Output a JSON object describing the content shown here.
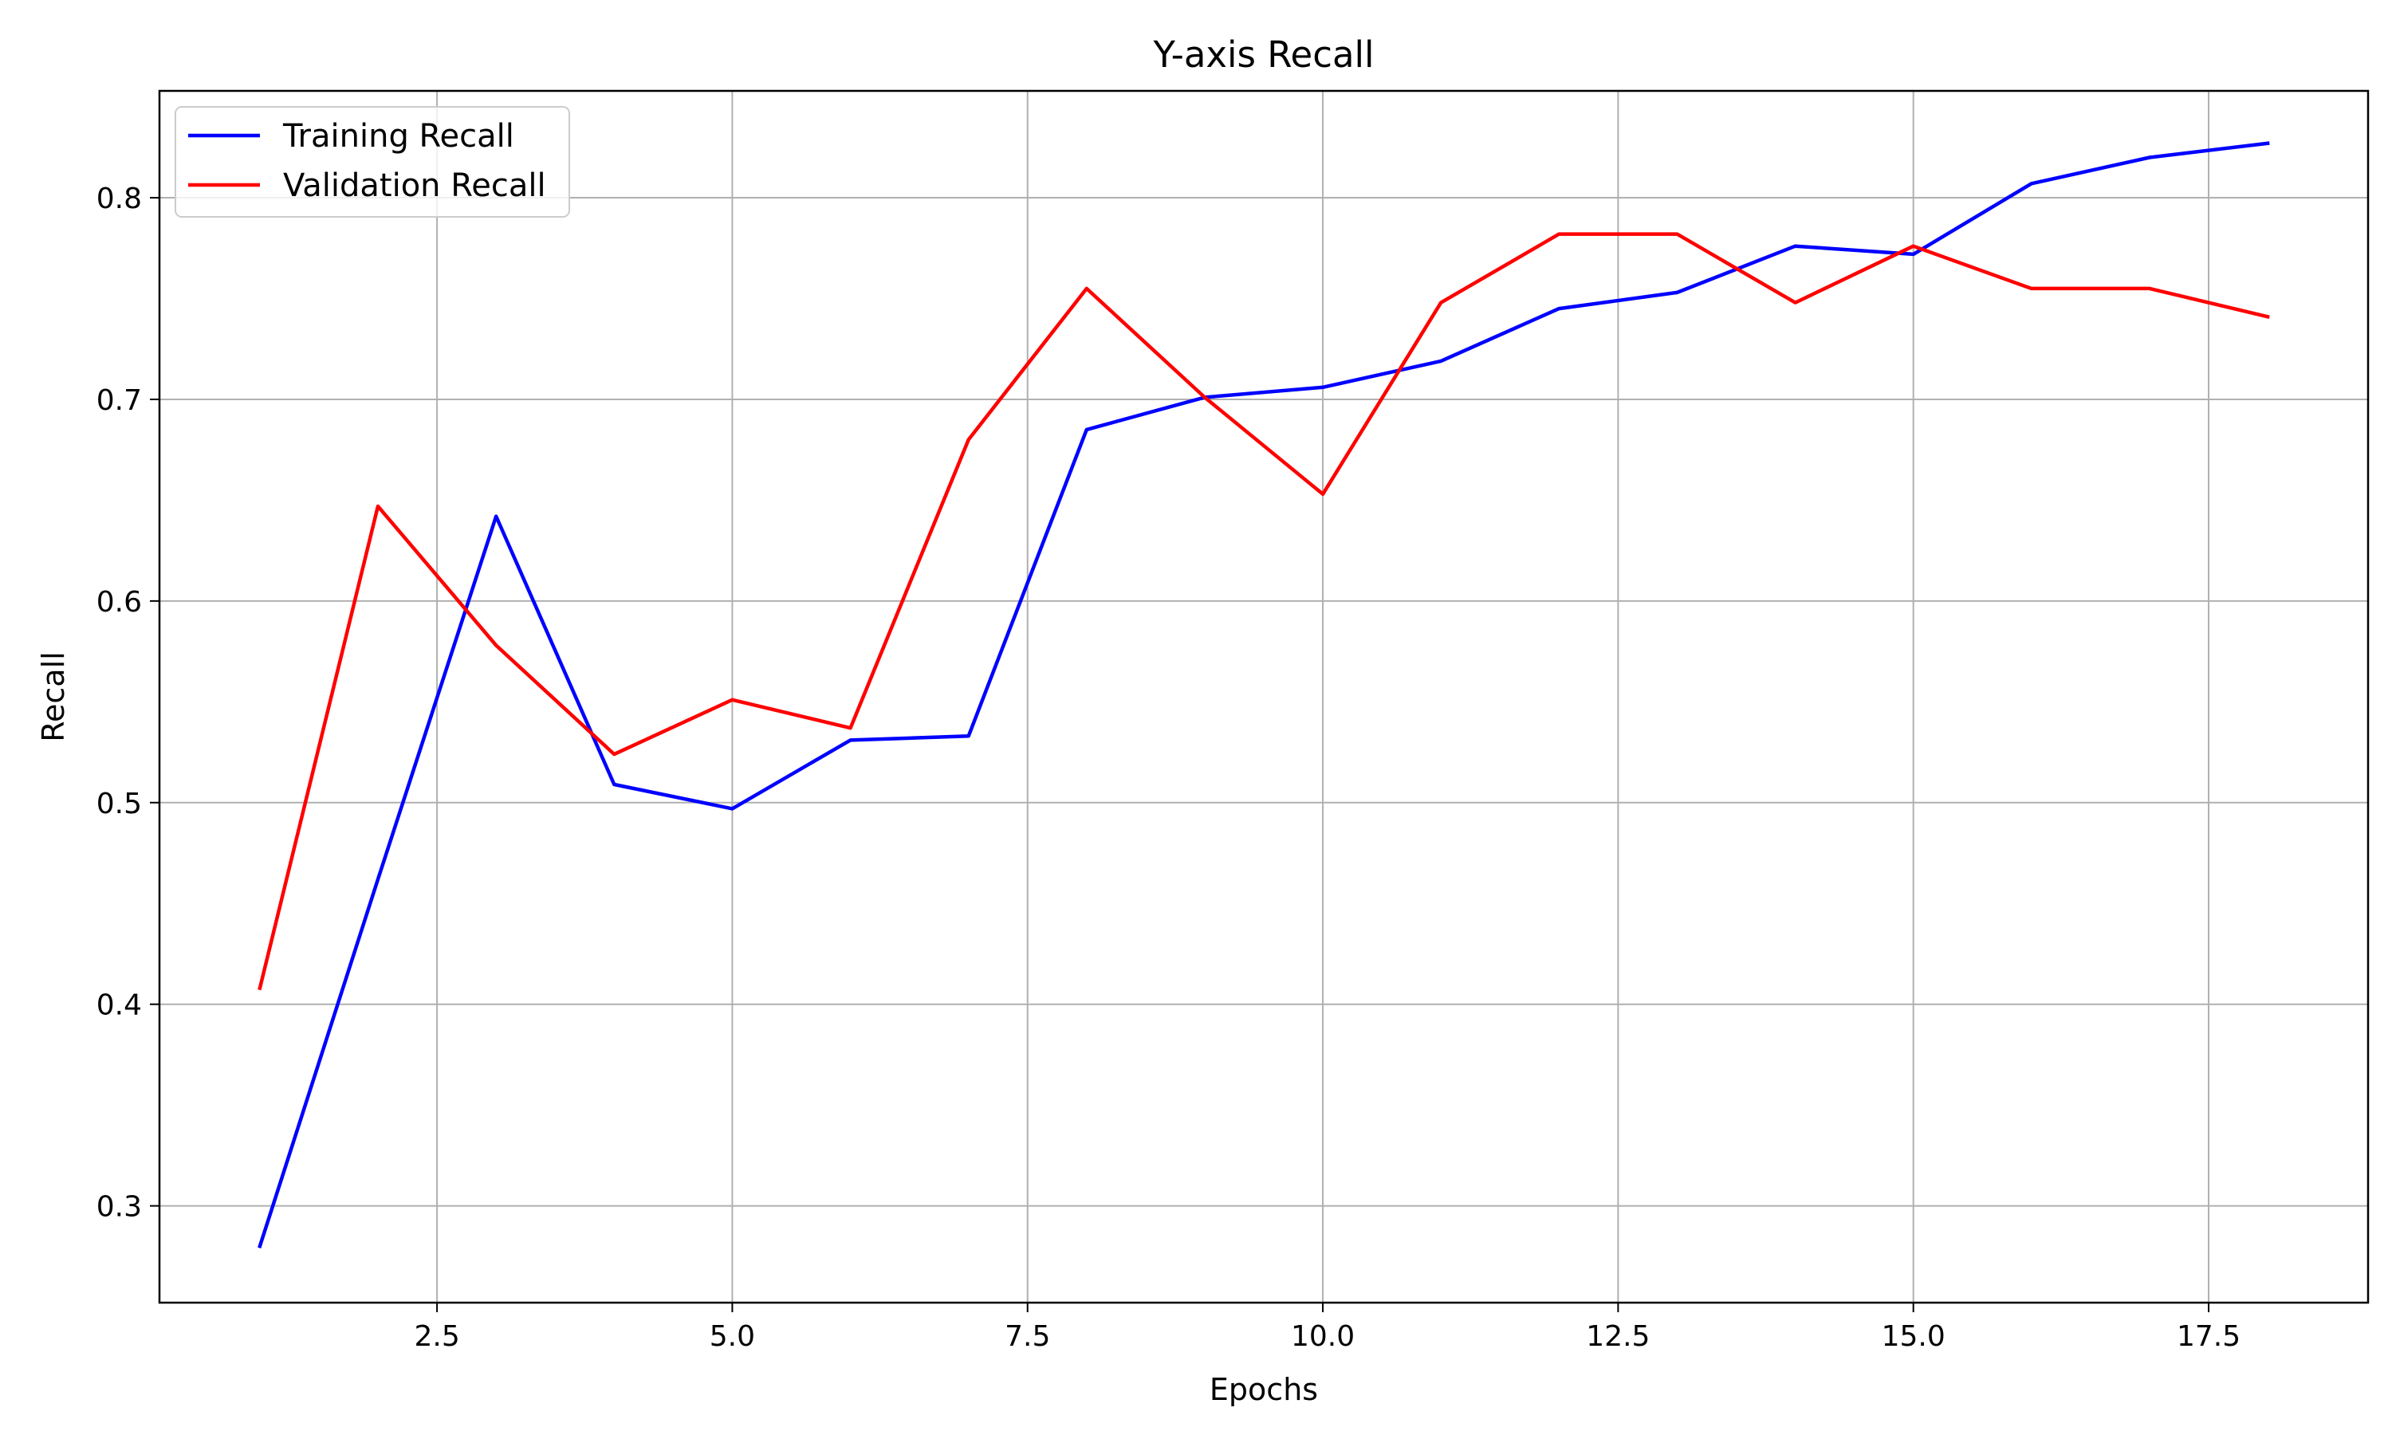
{
  "chart_data": {
    "type": "line",
    "title": "Y-axis Recall",
    "xlabel": "Epochs",
    "ylabel": "Recall",
    "xlim": [
      0.15,
      18.85
    ],
    "ylim": [
      0.252,
      0.853
    ],
    "xticks": [
      2.5,
      5.0,
      7.5,
      10.0,
      12.5,
      15.0,
      17.5
    ],
    "xtick_labels": [
      "2.5",
      "5.0",
      "7.5",
      "10.0",
      "12.5",
      "15.0",
      "17.5"
    ],
    "yticks": [
      0.3,
      0.4,
      0.5,
      0.6,
      0.7,
      0.8
    ],
    "ytick_labels": [
      "0.3",
      "0.4",
      "0.5",
      "0.6",
      "0.7",
      "0.8"
    ],
    "grid": true,
    "legend_position": "top-left",
    "x": [
      1,
      2,
      3,
      4,
      5,
      6,
      7,
      8,
      9,
      10,
      11,
      12,
      13,
      14,
      15,
      16,
      17,
      18
    ],
    "series": [
      {
        "name": "Training Recall",
        "color": "#0000ff",
        "values": [
          0.28,
          0.462,
          0.642,
          0.509,
          0.497,
          0.531,
          0.533,
          0.685,
          0.701,
          0.706,
          0.719,
          0.745,
          0.753,
          0.776,
          0.772,
          0.807,
          0.82,
          0.827
        ]
      },
      {
        "name": "Validation Recall",
        "color": "#ff0000",
        "values": [
          0.408,
          0.647,
          0.578,
          0.524,
          0.551,
          0.537,
          0.68,
          0.755,
          0.701,
          0.653,
          0.748,
          0.782,
          0.782,
          0.748,
          0.776,
          0.755,
          0.755,
          0.741
        ]
      }
    ]
  }
}
